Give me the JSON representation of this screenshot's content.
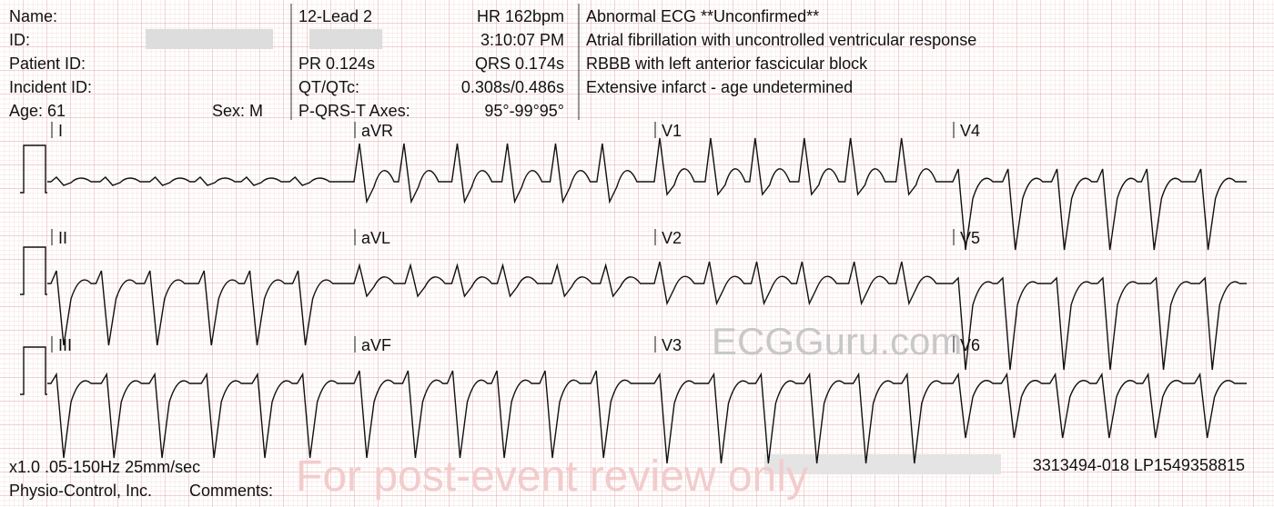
{
  "header": {
    "left": {
      "name": "Name:",
      "id": "ID:",
      "patient_id": "Patient ID:",
      "incident_id": "Incident ID:",
      "age": "Age: 61",
      "sex": "Sex: M"
    },
    "middle": {
      "device": "12-Lead 2",
      "hr": "HR 162bpm",
      "time": "3:10:07 PM",
      "pr": "PR 0.124s",
      "qrs": "QRS 0.174s",
      "qt_label": "QT/QTc:",
      "qt_value": "0.308s/0.486s",
      "axes_label": "P-QRS-T Axes:",
      "axes_value": "95°-99°95°"
    },
    "interpretation": [
      "Abnormal ECG **Unconfirmed**",
      "Atrial fibrillation with uncontrolled ventricular response",
      "RBBB with left anterior fascicular block",
      "Extensive infarct - age undetermined"
    ]
  },
  "leads": [
    "I",
    "aVR",
    "V1",
    "V4",
    "II",
    "aVL",
    "V2",
    "V5",
    "III",
    "aVF",
    "V3",
    "V6"
  ],
  "footer": {
    "settings": "x1.0 .05-150Hz 25mm/sec",
    "serial": "3313494-018 LP1549358815",
    "maker": "Physio-Control, Inc.",
    "comments": "Comments:"
  },
  "watermarks": {
    "site": "ECGGuru.com",
    "notice": "For post-event review only"
  }
}
